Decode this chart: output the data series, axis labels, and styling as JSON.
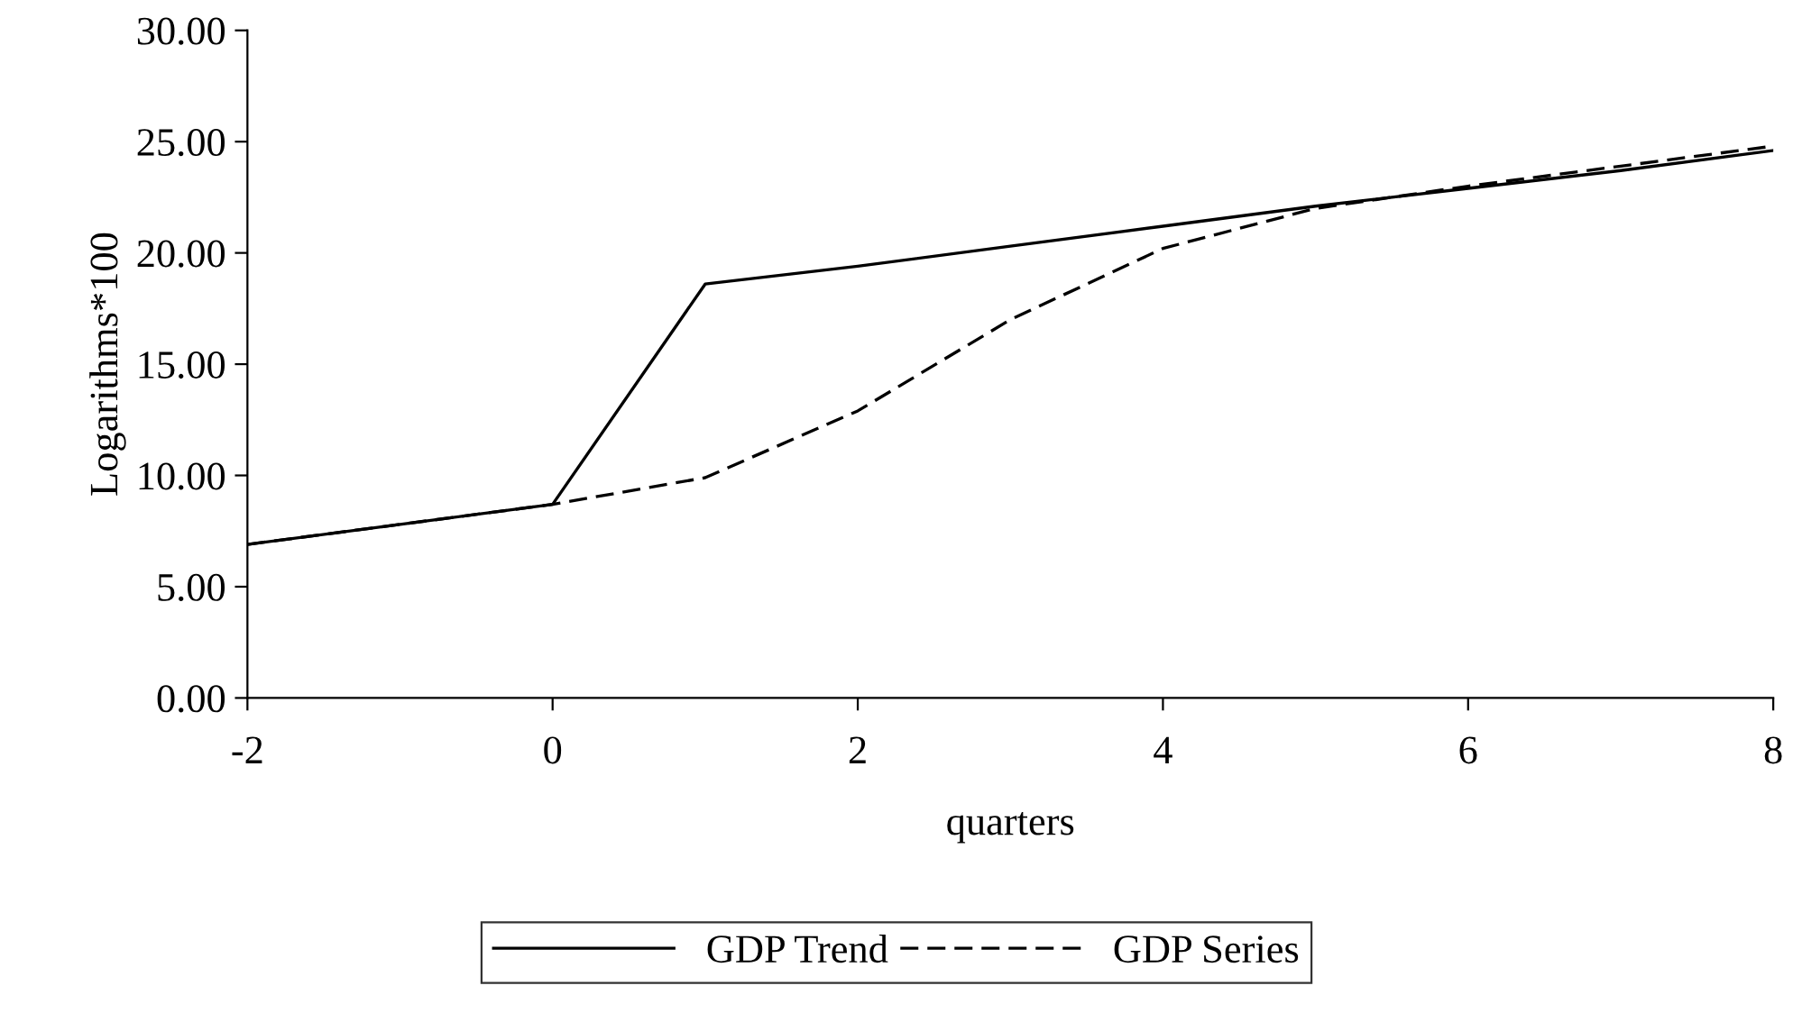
{
  "chart_data": {
    "type": "line",
    "xlabel": "quarters",
    "ylabel": "Logarithms*100",
    "x": [
      -2,
      -1,
      0,
      1,
      2,
      3,
      4,
      5,
      6,
      7,
      8
    ],
    "series": [
      {
        "name": "GDP Trend",
        "color": "#000000",
        "line_style": "solid",
        "values": [
          6.9,
          7.8,
          8.7,
          18.6,
          19.4,
          20.3,
          21.2,
          22.1,
          22.9,
          23.7,
          24.6
        ]
      },
      {
        "name": "GDP Series",
        "color": "#000000",
        "line_style": "dashed",
        "values": [
          6.9,
          7.8,
          8.7,
          9.9,
          12.9,
          17.0,
          20.2,
          22.0,
          23.0,
          23.9,
          24.8
        ]
      }
    ],
    "xlim": [
      -2,
      8
    ],
    "xticks": [
      -2,
      0,
      2,
      4,
      6,
      8
    ],
    "ylim": [
      0,
      30
    ],
    "yticks": [
      {
        "value": 0,
        "label": "0.00"
      },
      {
        "value": 5,
        "label": "5.00"
      },
      {
        "value": 10,
        "label": "10.00"
      },
      {
        "value": 15,
        "label": "15.00"
      },
      {
        "value": 20,
        "label": "20.00"
      },
      {
        "value": 25,
        "label": "25.00"
      },
      {
        "value": 30,
        "label": "30.00"
      }
    ],
    "grid": false,
    "legend": "bottom",
    "marker": "none"
  }
}
